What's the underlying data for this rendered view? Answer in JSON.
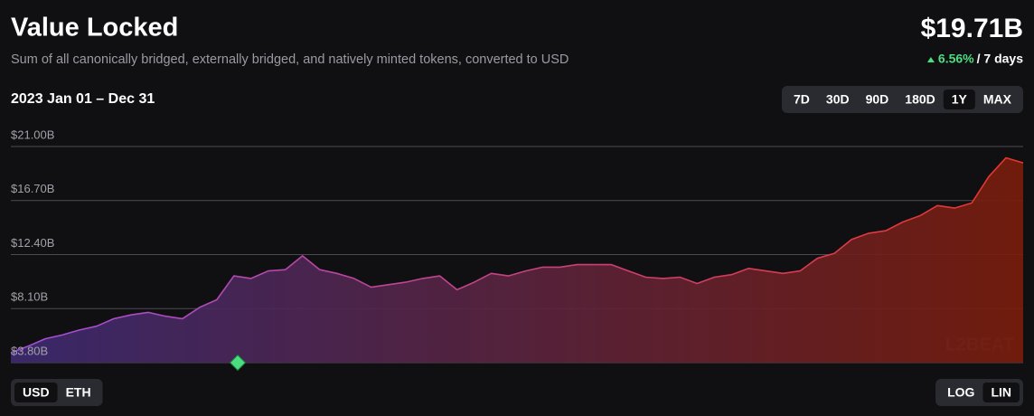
{
  "chart_data": {
    "type": "area",
    "title": "Value Locked",
    "subtitle": "Sum of all canonically bridged, externally bridged, and natively minted tokens, converted to USD",
    "headline_value": "$19.71B",
    "change": "6.56%",
    "change_period": "/ 7 days",
    "date_range": "2023 Jan 01 – Dec 31",
    "values": [
      4.6,
      5.1,
      5.7,
      6.0,
      6.4,
      6.7,
      7.3,
      7.6,
      7.8,
      7.5,
      7.3,
      8.2,
      8.8,
      10.7,
      10.5,
      11.1,
      11.2,
      12.3,
      11.2,
      10.9,
      10.5,
      9.8,
      10.0,
      10.2,
      10.5,
      10.7,
      9.6,
      10.2,
      10.9,
      10.7,
      11.1,
      11.4,
      11.4,
      11.6,
      11.6,
      11.6,
      11.1,
      10.6,
      10.5,
      10.6,
      10.1,
      10.6,
      10.8,
      11.3,
      11.1,
      10.9,
      11.1,
      12.1,
      12.5,
      13.6,
      14.1,
      14.3,
      15.0,
      15.5,
      16.3,
      16.1,
      16.5,
      18.6,
      20.1,
      19.7
    ],
    "ylim": [
      3.8,
      21.0
    ],
    "yticks": [
      {
        "value": 3.8,
        "label": "$3.80B"
      },
      {
        "value": 8.1,
        "label": "$8.10B"
      },
      {
        "value": 12.4,
        "label": "$12.40B"
      },
      {
        "value": 16.7,
        "label": "$16.70B"
      },
      {
        "value": 21.0,
        "label": "$21.00B"
      }
    ],
    "grid": true,
    "line_colors": [
      "#a24fd6",
      "#e8352a"
    ],
    "fill_colors": [
      "#3d2a72",
      "#7a1d0c"
    ],
    "range_buttons": [
      "7D",
      "30D",
      "90D",
      "180D",
      "1Y",
      "MAX"
    ],
    "active_range": "1Y",
    "currency_buttons": [
      "USD",
      "ETH"
    ],
    "active_currency": "USD",
    "scale_buttons": [
      "LOG",
      "LIN"
    ],
    "active_scale": "LIN"
  }
}
